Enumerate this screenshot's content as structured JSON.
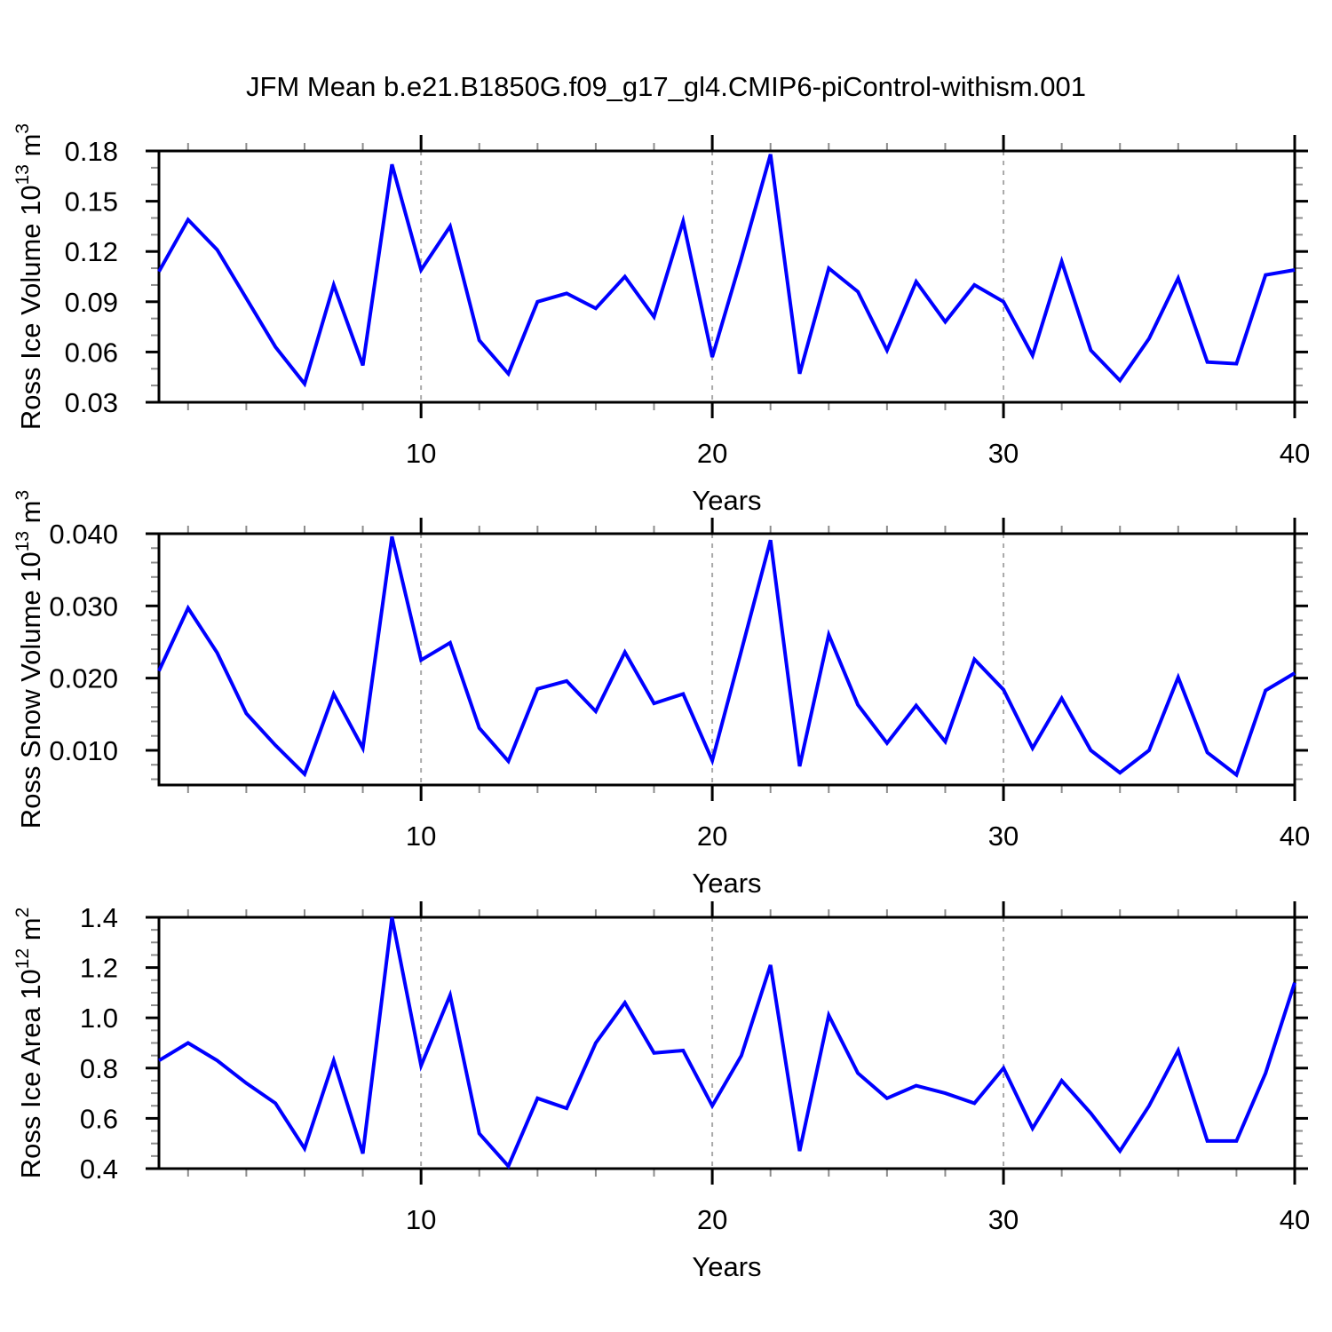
{
  "title": "JFM Mean b.e21.B1850G.f09_g17_gl4.CMIP6-piControl-withism.001",
  "colors": {
    "line": "#0000ff",
    "grid": "#a9a9a9",
    "axis": "#000000",
    "minor_tick": "#8c8c8c"
  },
  "x_axis": {
    "label": "Years",
    "range": [
      1,
      40
    ],
    "major_ticks": [
      10,
      20,
      30,
      40
    ],
    "major_tick_labels": [
      "10",
      "20",
      "30",
      "40"
    ],
    "minor_tick_interval": 2,
    "gridline_years": [
      10,
      20,
      30
    ]
  },
  "chart_data": [
    {
      "type": "line",
      "title": "JFM Mean b.e21.B1850G.f09_g17_gl4.CMIP6-piControl-withism.001",
      "ylabel": "Ross Ice Volume 10^13 m^3",
      "ylabel_segments": [
        {
          "t": "Ross Ice Volume 10"
        },
        {
          "t": "13",
          "sup": true
        },
        {
          "t": " m"
        },
        {
          "t": "3",
          "sup": true
        }
      ],
      "xlabel": "Years",
      "ylim": [
        0.03,
        0.18
      ],
      "ytick_values": [
        0.03,
        0.06,
        0.09,
        0.12,
        0.15,
        0.18
      ],
      "ytick_labels": [
        "0.03",
        "0.06",
        "0.09",
        "0.12",
        "0.15",
        "0.18"
      ],
      "y_minor_step": 0.01,
      "grid": "x-dashed",
      "legend": "none",
      "x": [
        1,
        2,
        3,
        4,
        5,
        6,
        7,
        8,
        9,
        10,
        11,
        12,
        13,
        14,
        15,
        16,
        17,
        18,
        19,
        20,
        21,
        22,
        23,
        24,
        25,
        26,
        27,
        28,
        29,
        30,
        31,
        32,
        33,
        34,
        35,
        36,
        37,
        38,
        39,
        40
      ],
      "values": [
        0.108,
        0.139,
        0.121,
        0.092,
        0.063,
        0.041,
        0.1,
        0.052,
        0.172,
        0.109,
        0.135,
        0.067,
        0.047,
        0.09,
        0.095,
        0.086,
        0.105,
        0.081,
        0.138,
        0.057,
        0.116,
        0.178,
        0.047,
        0.11,
        0.096,
        0.061,
        0.102,
        0.078,
        0.1,
        0.09,
        0.058,
        0.114,
        0.061,
        0.043,
        0.068,
        0.104,
        0.054,
        0.053,
        0.106,
        0.109
      ]
    },
    {
      "type": "line",
      "title": "",
      "ylabel": "Ross Snow Volume 10^13 m^3",
      "ylabel_segments": [
        {
          "t": "Ross Snow Volume 10"
        },
        {
          "t": "13",
          "sup": true
        },
        {
          "t": " m"
        },
        {
          "t": "3",
          "sup": true
        }
      ],
      "xlabel": "Years",
      "ylim": [
        0.0052,
        0.04
      ],
      "ytick_values": [
        0.01,
        0.02,
        0.03,
        0.04
      ],
      "ytick_labels": [
        "0.010",
        "0.020",
        "0.030",
        "0.040"
      ],
      "y_minor_step": 0.002,
      "grid": "x-dashed",
      "legend": "none",
      "x": [
        1,
        2,
        3,
        4,
        5,
        6,
        7,
        8,
        9,
        10,
        11,
        12,
        13,
        14,
        15,
        16,
        17,
        18,
        19,
        20,
        21,
        22,
        23,
        24,
        25,
        26,
        27,
        28,
        29,
        30,
        31,
        32,
        33,
        34,
        35,
        36,
        37,
        38,
        39,
        40
      ],
      "values": [
        0.021,
        0.0297,
        0.0235,
        0.0151,
        0.0107,
        0.0067,
        0.0178,
        0.0103,
        0.0396,
        0.0225,
        0.0249,
        0.0131,
        0.0085,
        0.0185,
        0.0196,
        0.0154,
        0.0236,
        0.0165,
        0.0178,
        0.0086,
        0.0238,
        0.0391,
        0.0078,
        0.026,
        0.0163,
        0.011,
        0.0162,
        0.0112,
        0.0226,
        0.0184,
        0.0103,
        0.0172,
        0.01,
        0.0069,
        0.01,
        0.0201,
        0.0097,
        0.0066,
        0.0183,
        0.0207
      ]
    },
    {
      "type": "line",
      "title": "",
      "ylabel": "Ross Ice Area 10^12 m^2",
      "ylabel_segments": [
        {
          "t": "Ross Ice Area 10"
        },
        {
          "t": "12",
          "sup": true
        },
        {
          "t": " m"
        },
        {
          "t": "2",
          "sup": true
        }
      ],
      "xlabel": "Years",
      "ylim": [
        0.4,
        1.4
      ],
      "ytick_values": [
        0.4,
        0.6,
        0.8,
        1.0,
        1.2,
        1.4
      ],
      "ytick_labels": [
        "0.4",
        "0.6",
        "0.8",
        "1.0",
        "1.2",
        "1.4"
      ],
      "y_minor_step": 0.05,
      "grid": "x-dashed",
      "legend": "none",
      "x": [
        1,
        2,
        3,
        4,
        5,
        6,
        7,
        8,
        9,
        10,
        11,
        12,
        13,
        14,
        15,
        16,
        17,
        18,
        19,
        20,
        21,
        22,
        23,
        24,
        25,
        26,
        27,
        28,
        29,
        30,
        31,
        32,
        33,
        34,
        35,
        36,
        37,
        38,
        39,
        40
      ],
      "values": [
        0.83,
        0.9,
        0.83,
        0.74,
        0.66,
        0.48,
        0.83,
        0.46,
        1.4,
        0.81,
        1.09,
        0.54,
        0.41,
        0.68,
        0.64,
        0.9,
        1.06,
        0.86,
        0.87,
        0.65,
        0.85,
        1.21,
        0.47,
        1.01,
        0.78,
        0.68,
        0.73,
        0.7,
        0.66,
        0.8,
        0.56,
        0.75,
        0.62,
        0.47,
        0.65,
        0.87,
        0.51,
        0.51,
        0.78,
        1.14
      ]
    }
  ]
}
